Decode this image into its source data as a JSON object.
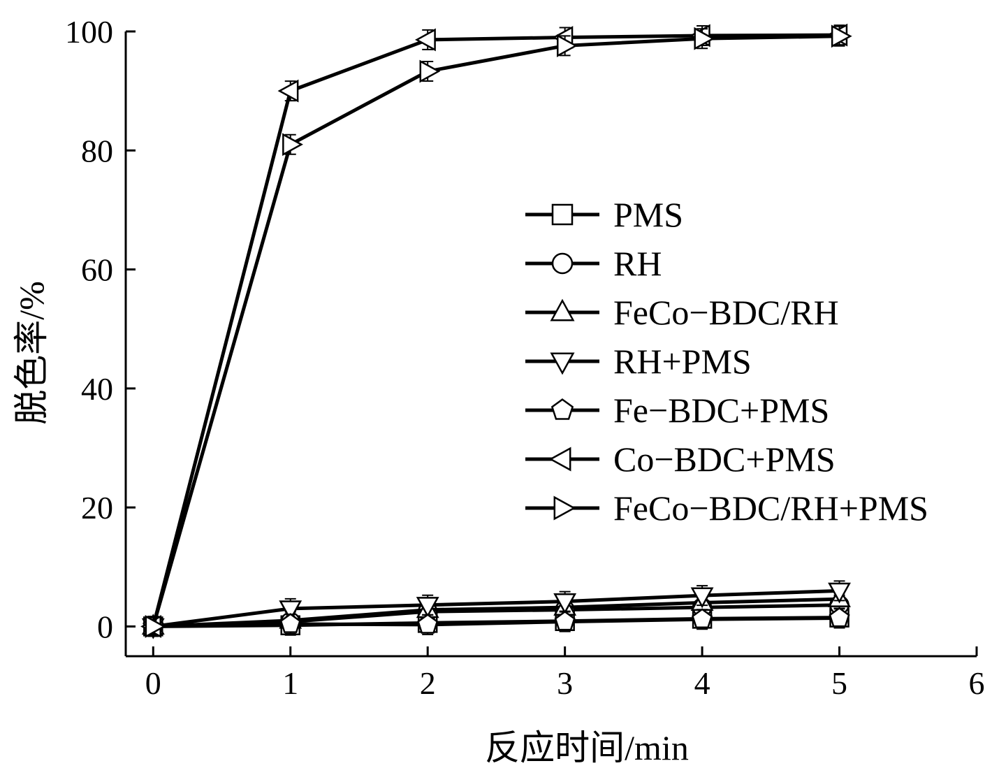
{
  "chart_data": {
    "type": "line",
    "title": "",
    "xlabel": "反应时间/min",
    "ylabel": "脱色率/%",
    "xlim": [
      -0.2,
      6
    ],
    "ylim": [
      -5,
      100
    ],
    "x_ticks": [
      "0",
      "1",
      "2",
      "3",
      "4",
      "5",
      "6"
    ],
    "y_ticks": [
      "0",
      "20",
      "40",
      "60",
      "80",
      "100"
    ],
    "grid": false,
    "legend_position": "right",
    "x": [
      0,
      1,
      2,
      3,
      4,
      5
    ],
    "series": [
      {
        "name": "PMS",
        "marker": "square",
        "values": [
          0,
          0.2,
          0.6,
          0.9,
          1.3,
          1.5
        ]
      },
      {
        "name": "RH",
        "marker": "circle",
        "values": [
          0,
          0.8,
          2.5,
          2.8,
          3.2,
          3.6
        ]
      },
      {
        "name": "FeCo−BDC/RH",
        "marker": "triangle-up",
        "values": [
          0,
          1.0,
          2.8,
          3.2,
          4.0,
          4.6
        ]
      },
      {
        "name": "RH+PMS",
        "marker": "triangle-down",
        "values": [
          0,
          3.0,
          3.6,
          4.2,
          5.2,
          6.0
        ]
      },
      {
        "name": "Fe−BDC+PMS",
        "marker": "pentagon",
        "values": [
          0,
          0.4,
          0.3,
          0.8,
          1.2,
          1.4
        ]
      },
      {
        "name": "Co−BDC+PMS",
        "marker": "triangle-left",
        "values": [
          0,
          90.0,
          98.6,
          99.0,
          99.3,
          99.4
        ]
      },
      {
        "name": "FeCo−BDC/RH+PMS",
        "marker": "triangle-right",
        "values": [
          0,
          81.0,
          93.3,
          97.6,
          98.8,
          99.2
        ]
      }
    ]
  }
}
